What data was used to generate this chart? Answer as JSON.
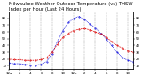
{
  "title": "Milwaukee Weather Outdoor Temperature (vs) THSW Index per Hour (Last 24 Hours)",
  "title_fontsize": 3.8,
  "background_color": "#ffffff",
  "plot_bg_color": "#ffffff",
  "grid_color": "#999999",
  "hours": [
    0,
    1,
    2,
    3,
    4,
    5,
    6,
    7,
    8,
    9,
    10,
    11,
    12,
    13,
    14,
    15,
    16,
    17,
    18,
    19,
    20,
    21,
    22,
    23
  ],
  "temp": [
    20,
    19,
    19,
    18,
    18,
    18,
    19,
    22,
    30,
    42,
    52,
    58,
    62,
    64,
    65,
    63,
    60,
    57,
    52,
    46,
    40,
    36,
    32,
    30
  ],
  "thsw": [
    14,
    13,
    13,
    12,
    11,
    11,
    12,
    16,
    28,
    46,
    62,
    74,
    80,
    83,
    78,
    72,
    66,
    58,
    50,
    40,
    30,
    22,
    18,
    16
  ],
  "temp_color": "#dd0000",
  "thsw_color": "#0000dd",
  "ylim": [
    5,
    90
  ],
  "xlim": [
    0,
    23
  ],
  "yticks": [
    80,
    70,
    60,
    50,
    40,
    30,
    20,
    10
  ],
  "xtick_positions": [
    0,
    2,
    4,
    6,
    8,
    10,
    12,
    14,
    16,
    18,
    20,
    22
  ],
  "xtick_labels": [
    "12a",
    "2",
    "4",
    "6",
    "8",
    "10",
    "12p",
    "2",
    "4",
    "6",
    "8",
    "10"
  ],
  "figsize": [
    1.6,
    0.87
  ],
  "dpi": 100
}
